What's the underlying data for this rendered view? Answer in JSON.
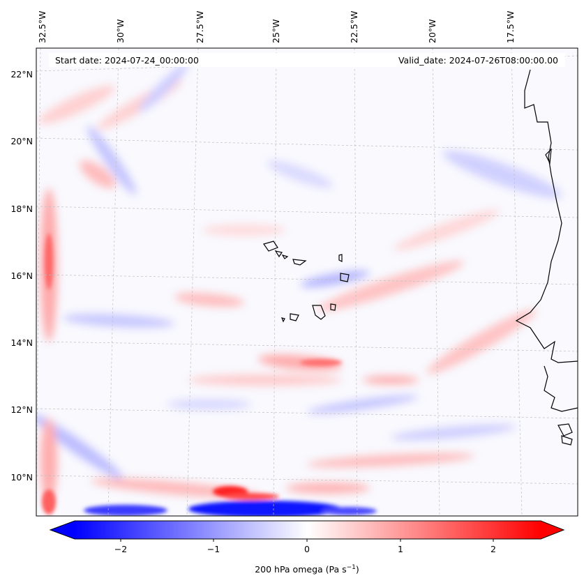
{
  "map": {
    "header_left": "Start date: 2024-07-24_00:00:00",
    "header_right": "Valid_date: 2024-07-26T08:00:00.00",
    "lon_ticks": [
      "32.5°W",
      "30°W",
      "27.5°W",
      "25°W",
      "22.5°W",
      "20°W",
      "17.5°W"
    ],
    "lat_ticks": [
      "22°N",
      "20°N",
      "18°N",
      "16°N",
      "14°N",
      "12°N",
      "10°N"
    ],
    "extent_lon": [
      -32.9,
      -16.0
    ],
    "extent_lat": [
      8.9,
      22.8
    ],
    "field_name": "200 hPa omega",
    "colormap": "bwr",
    "colors": {
      "negative": "#0000ff",
      "zero": "#ffffff",
      "positive": "#ff0000",
      "coast": "#000000"
    }
  },
  "colorbar": {
    "ticks": [
      "−2",
      "−1",
      "0",
      "1",
      "2"
    ],
    "tick_values": [
      -2,
      -1,
      0,
      1,
      2
    ],
    "range": [
      -2.5,
      2.5
    ],
    "extend": "both",
    "label_main": "200 hPa omega (Pa s",
    "label_sup": "−1",
    "label_end": ")"
  }
}
